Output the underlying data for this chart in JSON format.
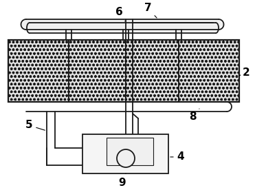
{
  "bg_color": "#ffffff",
  "lc": "#1a1a1a",
  "fc_mesh": "#e0e0e0",
  "fc_pipe": "#f8f8f8",
  "lw_main": 1.3,
  "lw_thin": 0.8,
  "hatch": "ooo",
  "fig_w": 3.71,
  "fig_h": 2.76,
  "dpi": 100,
  "labels": [
    "2",
    "4",
    "5",
    "6",
    "7",
    "8",
    "9"
  ],
  "label_fs": 11
}
